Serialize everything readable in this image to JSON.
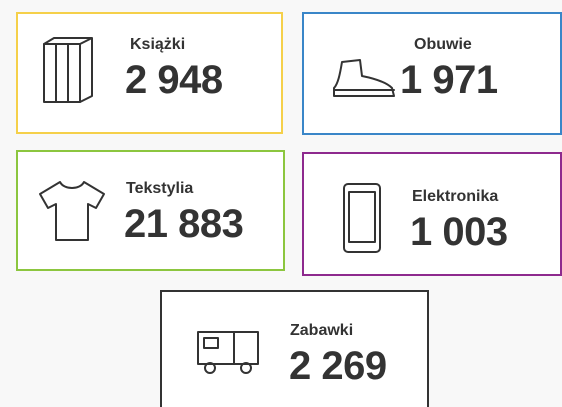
{
  "cards": [
    {
      "label": "Książki",
      "value": "2 948"
    },
    {
      "label": "Obuwie",
      "value": "1 971"
    },
    {
      "label": "Tekstylia",
      "value": "21 883"
    },
    {
      "label": "Elektronika",
      "value": "1 003"
    },
    {
      "label": "Zabawki",
      "value": "2 269"
    }
  ]
}
